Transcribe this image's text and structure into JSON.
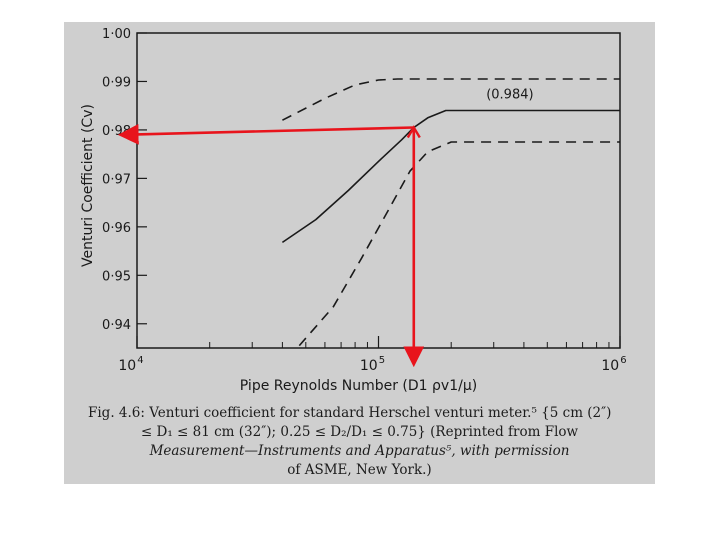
{
  "chart_data": {
    "type": "line",
    "xscale": "log",
    "xlim": [
      10000,
      1000000
    ],
    "ylim": [
      0.935,
      1.0
    ],
    "xticks": [
      10000,
      100000,
      1000000
    ],
    "xtick_labels": [
      "10",
      "10",
      "10"
    ],
    "xtick_exponents": [
      "4",
      "5",
      "6"
    ],
    "yticks": [
      0.94,
      0.95,
      0.96,
      0.97,
      0.98,
      0.99,
      1.0
    ],
    "ytick_labels": [
      "0·94",
      "0·95",
      "0·96",
      "0·97",
      "0·98",
      "0·99",
      "1·00"
    ],
    "xlabel": "Pipe Reynolds Number (D1 ρv1/μ)",
    "ylabel": "Venturi Coefficient (Cv)",
    "series": [
      {
        "style": "solid",
        "x": [
          40000,
          55000,
          75000,
          100000,
          125000,
          140000,
          160000,
          190000,
          1000000
        ],
        "y": [
          0.9568,
          0.9615,
          0.9675,
          0.9735,
          0.978,
          0.9805,
          0.9825,
          0.984,
          0.984
        ]
      },
      {
        "style": "dashed",
        "x": [
          40000,
          60000,
          80000,
          100000,
          120000,
          1000000
        ],
        "y": [
          0.982,
          0.9865,
          0.9893,
          0.9903,
          0.9905,
          0.9905
        ]
      },
      {
        "style": "dashed",
        "x": [
          47000,
          65000,
          85000,
          110000,
          135000,
          160000,
          200000,
          1000000
        ],
        "y": [
          0.9355,
          0.9435,
          0.9535,
          0.9635,
          0.9715,
          0.9755,
          0.9775,
          0.9775
        ]
      }
    ],
    "annotations": [
      {
        "text": "(0.984)",
        "x": 350000,
        "y": 0.9865
      }
    ],
    "reference_arrows": [
      {
        "from": [
          140000,
          0.9805
        ],
        "to": [
          10000,
          0.979
        ],
        "color": "#e8141c"
      },
      {
        "from": [
          140000,
          0.9805
        ],
        "to": [
          140000,
          0.935
        ],
        "color": "#e8141c"
      }
    ],
    "colors": {
      "curves": "#1a1a1a",
      "arrows": "#e8141c",
      "background": "#cfcfcf"
    }
  },
  "caption": {
    "line1": "Fig. 4.6:   Venturi coefficient for standard Herschel venturi meter.⁵ {5 cm (2″)",
    "line2": "≤ D₁ ≤ 81 cm (32″); 0.25 ≤ D₂/D₁ ≤ 0.75} (Reprinted from Flow",
    "line3": "Measurement—Instruments and Apparatus⁵, with permission",
    "line4": "of ASME, New York.)"
  }
}
